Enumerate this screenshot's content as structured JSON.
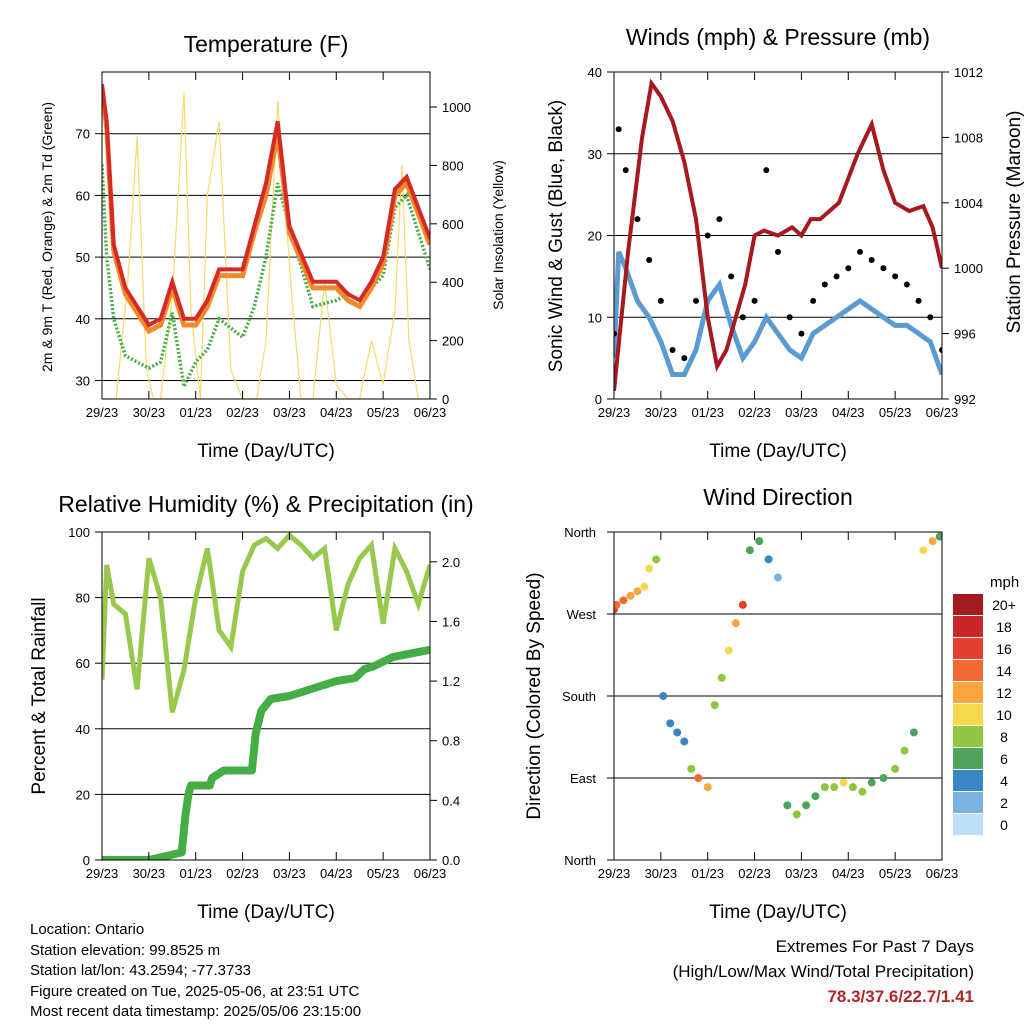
{
  "colors": {
    "temp_2m": "#d62a27",
    "temp_9m": "#f08a2a",
    "dewpoint": "#49ad45",
    "solar": "#f5dc6a",
    "wind": "#5b9bd4",
    "gust": "#000000",
    "pressure": "#a6191e",
    "rh": "#98c94e",
    "precip": "#45ad45",
    "extremes": "#b3262c"
  },
  "x_ticks": [
    "29/23",
    "30/23",
    "01/23",
    "02/23",
    "03/23",
    "04/23",
    "05/23",
    "06/23"
  ],
  "x_label": "Time (Day/UTC)",
  "footer": {
    "location": "Location: Ontario",
    "elevation": "Station elevation: 99.8525 m",
    "latlon": "Station lat/lon: 43.2594; -77.3733",
    "created": "Figure created on Tue, 2025-05-06, at 23:51 UTC",
    "recent": "Most recent data timestamp: 2025/05/06 23:15:00",
    "extremes_title": "Extremes For Past 7 Days",
    "extremes_sub": "(High/Low/Max Wind/Total Precipitation)",
    "extremes_values": "78.3/37.6/22.7/1.41"
  },
  "chart_data": [
    {
      "type": "line",
      "title": "Temperature (F)",
      "xlabel": "Time (Day/UTC)",
      "ylabel": "2m & 9m T (Red, Orange) & 2m Td (Green)",
      "y2label": "Solar Insolation (Yellow)",
      "ylim": [
        27,
        80
      ],
      "yticks": [
        30,
        40,
        50,
        60,
        70
      ],
      "y2lim": [
        0,
        1120
      ],
      "y2ticks": [
        0,
        200,
        400,
        600,
        800,
        1000
      ],
      "x": [
        0,
        0.1,
        0.25,
        0.5,
        1,
        1.25,
        1.5,
        1.75,
        2,
        2.25,
        2.5,
        3,
        3.25,
        3.5,
        3.75,
        4,
        4.5,
        5,
        5.25,
        5.5,
        5.75,
        6,
        6.25,
        6.5,
        6.75,
        7
      ],
      "series": [
        {
          "name": "2m T",
          "axis": "left",
          "values": [
            78,
            72,
            52,
            45,
            39,
            40,
            46,
            40,
            40,
            43,
            48,
            48,
            55,
            62,
            72,
            55,
            46,
            46,
            44,
            43,
            46,
            50,
            61,
            63,
            58,
            53
          ]
        },
        {
          "name": "9m T",
          "axis": "left",
          "values": [
            77,
            71,
            51,
            44,
            38,
            39,
            45,
            39,
            39,
            42,
            47,
            47,
            54,
            60,
            70,
            54,
            45,
            45,
            43,
            42,
            45,
            49,
            60,
            62,
            57,
            52
          ]
        },
        {
          "name": "2m Td",
          "axis": "left",
          "values": [
            65,
            50,
            40,
            34,
            32,
            33,
            41,
            29,
            33,
            35,
            40,
            37,
            42,
            50,
            62,
            55,
            42,
            43,
            44,
            43,
            45,
            47,
            58,
            60,
            54,
            48
          ]
        },
        {
          "name": "Solar",
          "axis": "right",
          "x": [
            0,
            0.3,
            0.55,
            0.75,
            0.95,
            1.1,
            1.25,
            1.5,
            1.75,
            1.9,
            2.1,
            2.25,
            2.5,
            2.75,
            3.0,
            3.3,
            3.5,
            3.75,
            4.05,
            4.25,
            4.5,
            4.75,
            5.0,
            5.25,
            5.5,
            5.75,
            6.0,
            6.25,
            6.4,
            6.55,
            6.75,
            7.0
          ],
          "values": [
            0,
            0,
            400,
            900,
            100,
            0,
            0,
            350,
            1050,
            300,
            0,
            700,
            950,
            100,
            0,
            0,
            200,
            1020,
            350,
            0,
            0,
            400,
            50,
            0,
            0,
            200,
            50,
            300,
            800,
            200,
            0,
            0
          ]
        }
      ]
    },
    {
      "type": "scatter",
      "title": "Winds (mph) & Pressure (mb)",
      "xlabel": "Time (Day/UTC)",
      "ylabel": "Sonic Wind & Gust (Blue, Black)",
      "y2label": "Station Pressure (Maroon)",
      "ylim": [
        0,
        40
      ],
      "yticks": [
        0,
        10,
        20,
        30,
        40
      ],
      "y2lim": [
        992,
        1012
      ],
      "y2ticks": [
        992,
        996,
        1000,
        1004,
        1008,
        1012
      ],
      "x": [
        0,
        0.1,
        0.25,
        0.5,
        0.75,
        1,
        1.25,
        1.5,
        1.75,
        2,
        2.25,
        2.5,
        2.75,
        3,
        3.25,
        3.5,
        3.75,
        4,
        4.25,
        4.5,
        4.75,
        5,
        5.25,
        5.5,
        5.75,
        6,
        6.25,
        6.5,
        6.75,
        7
      ],
      "series": [
        {
          "name": "Sonic Wind",
          "axis": "left",
          "values": [
            5,
            18,
            16,
            12,
            10,
            7,
            3,
            3,
            6,
            12,
            14,
            9,
            5,
            7,
            10,
            8,
            6,
            5,
            8,
            9,
            10,
            11,
            12,
            11,
            10,
            9,
            9,
            8,
            7,
            3
          ]
        },
        {
          "name": "Gust",
          "axis": "left",
          "values": [
            8,
            33,
            28,
            22,
            17,
            12,
            6,
            5,
            12,
            20,
            22,
            15,
            10,
            12,
            28,
            18,
            10,
            8,
            12,
            14,
            15,
            16,
            18,
            17,
            16,
            15,
            14,
            12,
            10,
            6
          ]
        },
        {
          "name": "Station Pressure",
          "axis": "right",
          "x": [
            0,
            0.3,
            0.6,
            0.8,
            1.0,
            1.25,
            1.5,
            1.75,
            2.0,
            2.2,
            2.4,
            2.6,
            2.8,
            3.0,
            3.2,
            3.5,
            3.8,
            4.0,
            4.2,
            4.4,
            4.6,
            4.8,
            5.0,
            5.2,
            5.5,
            5.75,
            6.0,
            6.3,
            6.6,
            6.8,
            7.0
          ],
          "values": [
            992.5,
            1001,
            1008,
            1011.3,
            1010.5,
            1009,
            1006.5,
            1003,
            997,
            994,
            995,
            997,
            999,
            1002,
            1002.3,
            1002,
            1002.5,
            1002,
            1003,
            1003,
            1003.5,
            1004,
            1005.5,
            1007,
            1008.8,
            1006,
            1004,
            1003.5,
            1003.8,
            1002.5,
            1000
          ]
        }
      ]
    },
    {
      "type": "line",
      "title": "Relative Humidity (%) & Precipitation (in)",
      "xlabel": "Time (Day/UTC)",
      "ylabel": "Percent & Total Rainfall",
      "ylim": [
        0,
        100
      ],
      "yticks": [
        0,
        20,
        40,
        60,
        80,
        100
      ],
      "y2lim": [
        0.0,
        2.2
      ],
      "y2ticks": [
        0.0,
        0.4,
        0.8,
        1.2,
        1.6,
        2.0
      ],
      "x": [
        0,
        0.1,
        0.25,
        0.5,
        0.75,
        1,
        1.25,
        1.5,
        1.75,
        2,
        2.25,
        2.5,
        2.75,
        3,
        3.25,
        3.5,
        3.75,
        4,
        4.25,
        4.5,
        4.75,
        5,
        5.25,
        5.5,
        5.75,
        6,
        6.25,
        6.5,
        6.75,
        7
      ],
      "series": [
        {
          "name": "RH",
          "axis": "left",
          "values": [
            55,
            90,
            78,
            75,
            52,
            92,
            80,
            45,
            58,
            80,
            95,
            70,
            65,
            88,
            96,
            98,
            95,
            99,
            96,
            92,
            95,
            70,
            84,
            92,
            96,
            72,
            95,
            88,
            78,
            90
          ]
        },
        {
          "name": "Total Precipitation",
          "axis": "right",
          "x": [
            0,
            1.0,
            1.7,
            1.78,
            1.85,
            1.9,
            2.0,
            2.3,
            2.35,
            2.6,
            2.95,
            3.2,
            3.28,
            3.4,
            3.6,
            4.0,
            4.5,
            5.0,
            5.4,
            5.6,
            5.8,
            6.0,
            6.2,
            6.5,
            7.0
          ],
          "values": [
            0,
            0,
            0.05,
            0.3,
            0.45,
            0.5,
            0.5,
            0.5,
            0.55,
            0.6,
            0.6,
            0.6,
            0.85,
            1.0,
            1.08,
            1.1,
            1.15,
            1.2,
            1.22,
            1.28,
            1.3,
            1.33,
            1.36,
            1.38,
            1.41
          ]
        }
      ]
    },
    {
      "type": "scatter",
      "title": "Wind Direction",
      "xlabel": "Time (Day/UTC)",
      "ylabel": "Direction (Colored By Speed)",
      "ylim": [
        0,
        360
      ],
      "ytick_labels": [
        "North",
        "East",
        "South",
        "West",
        "North"
      ],
      "legend": {
        "title": "mph",
        "labels": [
          "20+",
          "18",
          "16",
          "14",
          "12",
          "10",
          "8",
          "6",
          "4",
          "2",
          "0"
        ],
        "colors": [
          "#a51a1f",
          "#c9262a",
          "#e23f2c",
          "#f26a2f",
          "#f9a540",
          "#f5d84e",
          "#8dc63f",
          "#4da45a",
          "#3a86c4",
          "#7bb3e0",
          "#bee0f6"
        ]
      },
      "x": [
        0,
        0.05,
        0.2,
        0.35,
        0.5,
        0.65,
        0.75,
        0.9,
        1.05,
        1.2,
        1.35,
        1.5,
        1.65,
        1.8,
        2.0,
        2.15,
        2.3,
        2.45,
        2.6,
        2.75,
        2.9,
        3.1,
        3.3,
        3.5,
        3.7,
        3.9,
        4.1,
        4.3,
        4.5,
        4.7,
        4.9,
        5.1,
        5.3,
        5.5,
        5.75,
        6.0,
        6.2,
        6.4,
        6.6,
        6.8,
        6.95
      ],
      "values": [
        275,
        280,
        285,
        290,
        295,
        300,
        320,
        330,
        180,
        150,
        140,
        130,
        100,
        90,
        80,
        170,
        200,
        230,
        260,
        280,
        340,
        350,
        330,
        310,
        60,
        50,
        60,
        70,
        80,
        80,
        85,
        80,
        75,
        85,
        90,
        100,
        120,
        140,
        340,
        350,
        355
      ],
      "speeds": [
        16,
        14,
        13,
        12,
        12,
        10,
        10,
        8,
        4,
        3,
        3,
        4,
        8,
        14,
        12,
        8,
        8,
        10,
        12,
        16,
        6,
        6,
        4,
        2,
        6,
        8,
        6,
        6,
        8,
        8,
        10,
        8,
        8,
        6,
        6,
        8,
        8,
        6,
        10,
        12,
        6
      ]
    }
  ]
}
